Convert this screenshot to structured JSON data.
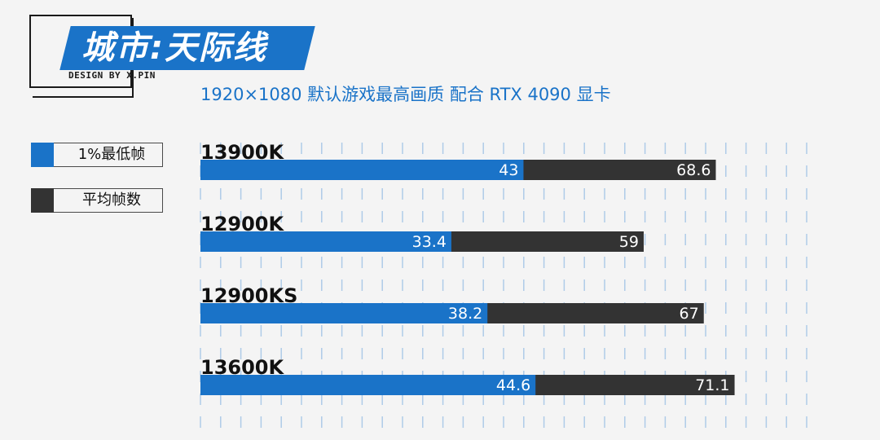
{
  "header": {
    "title": "城市:天际线",
    "credit": "DESIGN BY X.PIN",
    "subtitle": "1920×1080  默认游戏最高画质  配合 RTX 4090 显卡"
  },
  "legend": [
    {
      "label": "1%最低帧",
      "color": "#1a73c8"
    },
    {
      "label": "平均帧数",
      "color": "#333333"
    }
  ],
  "colors": {
    "min": "#1a73c8",
    "avg": "#333333",
    "grid": "#aecbe8",
    "background": "#f4f4f4"
  },
  "chart_data": {
    "type": "bar",
    "orientation": "horizontal",
    "stacked_overlay": true,
    "title": "城市:天际线",
    "subtitle": "1920×1080  默认游戏最高画质  配合 RTX 4090 显卡",
    "categories": [
      "13900K",
      "12900K",
      "12900KS",
      "13600K"
    ],
    "series": [
      {
        "name": "1%最低帧",
        "values": [
          43,
          33.4,
          38.2,
          44.6
        ]
      },
      {
        "name": "平均帧数",
        "values": [
          68.6,
          59,
          67,
          71.1
        ]
      }
    ],
    "xlim": [
      0,
      75
    ],
    "xlabel": "",
    "ylabel": "",
    "grid": true
  }
}
